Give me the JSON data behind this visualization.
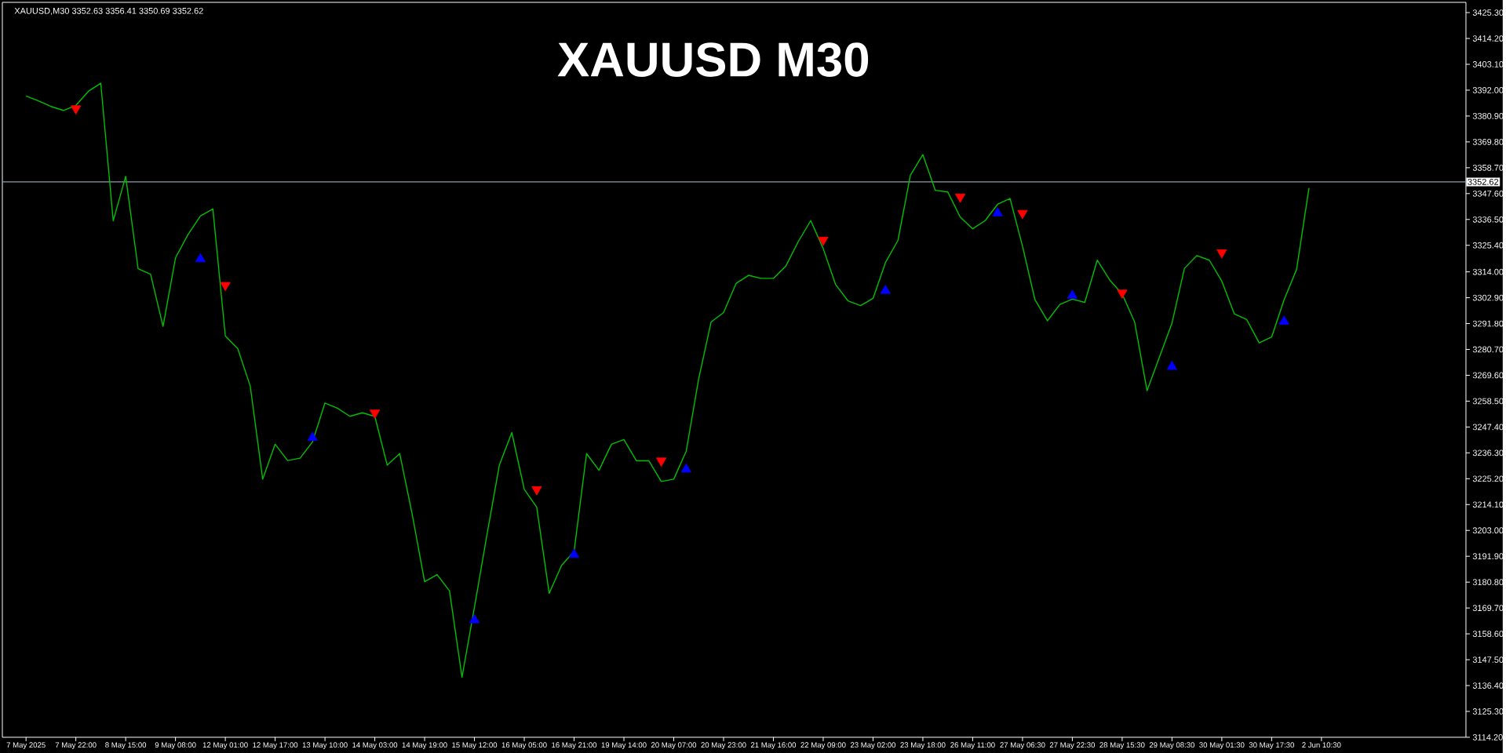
{
  "chart_data": {
    "type": "line",
    "title": "XAUUSD M30",
    "annotations": [
      "XAUUSD,M30  3352.63 3356.41 3350.69 3352.62"
    ],
    "categories": [
      "7 May 2025",
      null,
      null,
      null,
      "7 May 22:00",
      null,
      null,
      null,
      "8 May 15:00",
      null,
      null,
      null,
      "9 May 08:00",
      null,
      null,
      null,
      "12 May 01:00",
      null,
      null,
      null,
      "12 May 17:00",
      null,
      null,
      null,
      "13 May 10:00",
      null,
      null,
      null,
      "14 May 03:00",
      null,
      null,
      null,
      "14 May 19:00",
      null,
      null,
      null,
      "15 May 12:00",
      null,
      null,
      null,
      "16 May 05:00",
      null,
      null,
      null,
      "16 May 21:00",
      null,
      null,
      null,
      "19 May 14:00",
      null,
      null,
      null,
      "20 May 07:00",
      null,
      null,
      null,
      "20 May 23:00",
      null,
      null,
      null,
      "21 May 16:00",
      null,
      null,
      null,
      "22 May 09:00",
      null,
      null,
      null,
      "23 May 02:00",
      null,
      null,
      null,
      "23 May 18:00",
      null,
      null,
      null,
      "26 May 11:00",
      null,
      null,
      null,
      "27 May 06:30",
      null,
      null,
      null,
      "27 May 22:30",
      null,
      null,
      null,
      "28 May 15:30",
      null,
      null,
      null,
      "29 May 08:30",
      null,
      null,
      null,
      "30 May 01:30",
      null,
      null,
      null,
      "30 May 17:30",
      null,
      null,
      null,
      "2 Jun 10:30",
      null,
      null,
      null,
      null,
      null,
      null,
      null,
      null,
      null,
      null,
      null
    ],
    "ylim": [
      3114.2,
      3429.7
    ],
    "yticks": [
      {
        "value": 3114.2,
        "label": "3114.20"
      },
      {
        "value": 3125.3,
        "label": "3125.30"
      },
      {
        "value": 3136.4,
        "label": "3136.40"
      },
      {
        "value": 3147.5,
        "label": "3147.50"
      },
      {
        "value": 3158.6,
        "label": "3158.60"
      },
      {
        "value": 3169.7,
        "label": "3169.70"
      },
      {
        "value": 3180.8,
        "label": "3180.80"
      },
      {
        "value": 3191.9,
        "label": "3191.90"
      },
      {
        "value": 3203.0,
        "label": "3203.00"
      },
      {
        "value": 3214.1,
        "label": "3214.10"
      },
      {
        "value": 3225.2,
        "label": "3225.20"
      },
      {
        "value": 3236.3,
        "label": "3236.30"
      },
      {
        "value": 3247.4,
        "label": "3247.40"
      },
      {
        "value": 3258.5,
        "label": "3258.50"
      },
      {
        "value": 3269.6,
        "label": "3269.60"
      },
      {
        "value": 3280.7,
        "label": "3280.70"
      },
      {
        "value": 3291.8,
        "label": "3291.80"
      },
      {
        "value": 3302.9,
        "label": "3302.90"
      },
      {
        "value": 3314.0,
        "label": "3314.00"
      },
      {
        "value": 3325.4,
        "label": "3325.40"
      },
      {
        "value": 3336.5,
        "label": "3336.50"
      },
      {
        "value": 3347.6,
        "label": "3347.60"
      },
      {
        "value": 3358.7,
        "label": "3358.70"
      },
      {
        "value": 3369.8,
        "label": "3369.80"
      },
      {
        "value": 3380.9,
        "label": "3380.90"
      },
      {
        "value": 3392.0,
        "label": "3392.00"
      },
      {
        "value": 3403.1,
        "label": "3403.10"
      },
      {
        "value": 3414.2,
        "label": "3414.20"
      },
      {
        "value": 3425.3,
        "label": "3425.30"
      }
    ],
    "ref_lines": [
      {
        "axis": "y",
        "value": 3352.62,
        "label": "3352.62",
        "color": "#8c9cb0"
      }
    ],
    "series": [
      {
        "color": "#00c000",
        "values": [
          3389.5,
          3387.4,
          3385.0,
          3383.3,
          3385.4,
          3391.5,
          3395.0,
          3335.9,
          3355.0,
          3315.3,
          3313.0,
          3290.6,
          3320.0,
          3330.0,
          3338.0,
          3341.0,
          3286.5,
          3281.0,
          3265.0,
          3225.0,
          3240.0,
          3233.0,
          3234.0,
          3241.0,
          3257.7,
          3255.5,
          3252.0,
          3253.5,
          3252.0,
          3231.0,
          3236.0,
          3210.0,
          3181.0,
          3184.0,
          3177.0,
          3140.0,
          3170.0,
          3201.0,
          3231.0,
          3245.0,
          3220.6,
          3213.0,
          3176.0,
          3188.0,
          3194.0,
          3236.0,
          3228.8,
          3240.0,
          3242.0,
          3232.9,
          3232.9,
          3224.0,
          3225.0,
          3237.0,
          3268.0,
          3292.5,
          3296.5,
          3309.0,
          3312.5,
          3311.2,
          3311.2,
          3316.5,
          3327.0,
          3336.0,
          3324.0,
          3308.5,
          3301.5,
          3299.5,
          3302.6,
          3318.0,
          3327.5,
          3355.5,
          3364.3,
          3349.0,
          3348.3,
          3337.5,
          3332.5,
          3336.0,
          3343.0,
          3345.5,
          3325.0,
          3302.0,
          3293.0,
          3300.0,
          3302.3,
          3300.9,
          3319.0,
          3310.5,
          3304.5,
          3292.5,
          3263.0,
          3277.5,
          3292.0,
          3315.5,
          3321.0,
          3319.0,
          3310.0,
          3296.0,
          3293.5,
          3283.5,
          3286.0,
          3302.0,
          3315.0,
          3350.0,
          null,
          null,
          null,
          null,
          null,
          null,
          null,
          null,
          null,
          null,
          null,
          null
        ]
      },
      {
        "type": "scatter",
        "marker": "triangle",
        "color": "#ff0000",
        "values": [
          null,
          null,
          null,
          null,
          3384.1,
          null,
          null,
          null,
          null,
          null,
          null,
          null,
          null,
          null,
          null,
          null,
          3308.3,
          null,
          null,
          null,
          null,
          null,
          null,
          null,
          null,
          null,
          null,
          null,
          3253.5,
          null,
          null,
          null,
          null,
          null,
          null,
          null,
          null,
          null,
          null,
          null,
          null,
          3220.6,
          null,
          null,
          null,
          null,
          null,
          null,
          null,
          null,
          null,
          3232.9,
          null,
          null,
          null,
          null,
          null,
          null,
          null,
          null,
          null,
          null,
          null,
          null,
          3327.7,
          null,
          null,
          null,
          null,
          null,
          null,
          null,
          null,
          null,
          null,
          3346.2,
          null,
          null,
          null,
          null,
          3339.2,
          null,
          null,
          null,
          null,
          null,
          null,
          null,
          3305.0,
          null,
          null,
          null,
          null,
          null,
          null,
          null,
          3322.3,
          null,
          null,
          null,
          null,
          null,
          null,
          null,
          null,
          null,
          null,
          null,
          null,
          null,
          null,
          null,
          null,
          null,
          null,
          null
        ]
      },
      {
        "type": "scatter",
        "marker": "triangle",
        "color": "#0000ff",
        "values": [
          null,
          null,
          null,
          null,
          null,
          null,
          null,
          null,
          null,
          null,
          null,
          null,
          null,
          null,
          3319.5,
          null,
          null,
          null,
          null,
          null,
          null,
          null,
          null,
          3242.8,
          null,
          null,
          null,
          null,
          null,
          null,
          null,
          null,
          null,
          null,
          null,
          null,
          3164.5,
          null,
          null,
          null,
          null,
          null,
          null,
          null,
          3192.6,
          null,
          null,
          null,
          null,
          null,
          null,
          null,
          null,
          3229.2,
          null,
          null,
          null,
          null,
          null,
          null,
          null,
          null,
          null,
          null,
          null,
          null,
          null,
          null,
          null,
          3305.9,
          null,
          null,
          null,
          null,
          null,
          null,
          null,
          null,
          3339.2,
          null,
          null,
          null,
          null,
          null,
          3303.8,
          null,
          null,
          null,
          null,
          null,
          null,
          null,
          3273.3,
          null,
          null,
          null,
          null,
          null,
          null,
          null,
          null,
          3292.7,
          null,
          null,
          null,
          null,
          null,
          null,
          null,
          null,
          null,
          null,
          null,
          null,
          null,
          null
        ]
      }
    ]
  }
}
